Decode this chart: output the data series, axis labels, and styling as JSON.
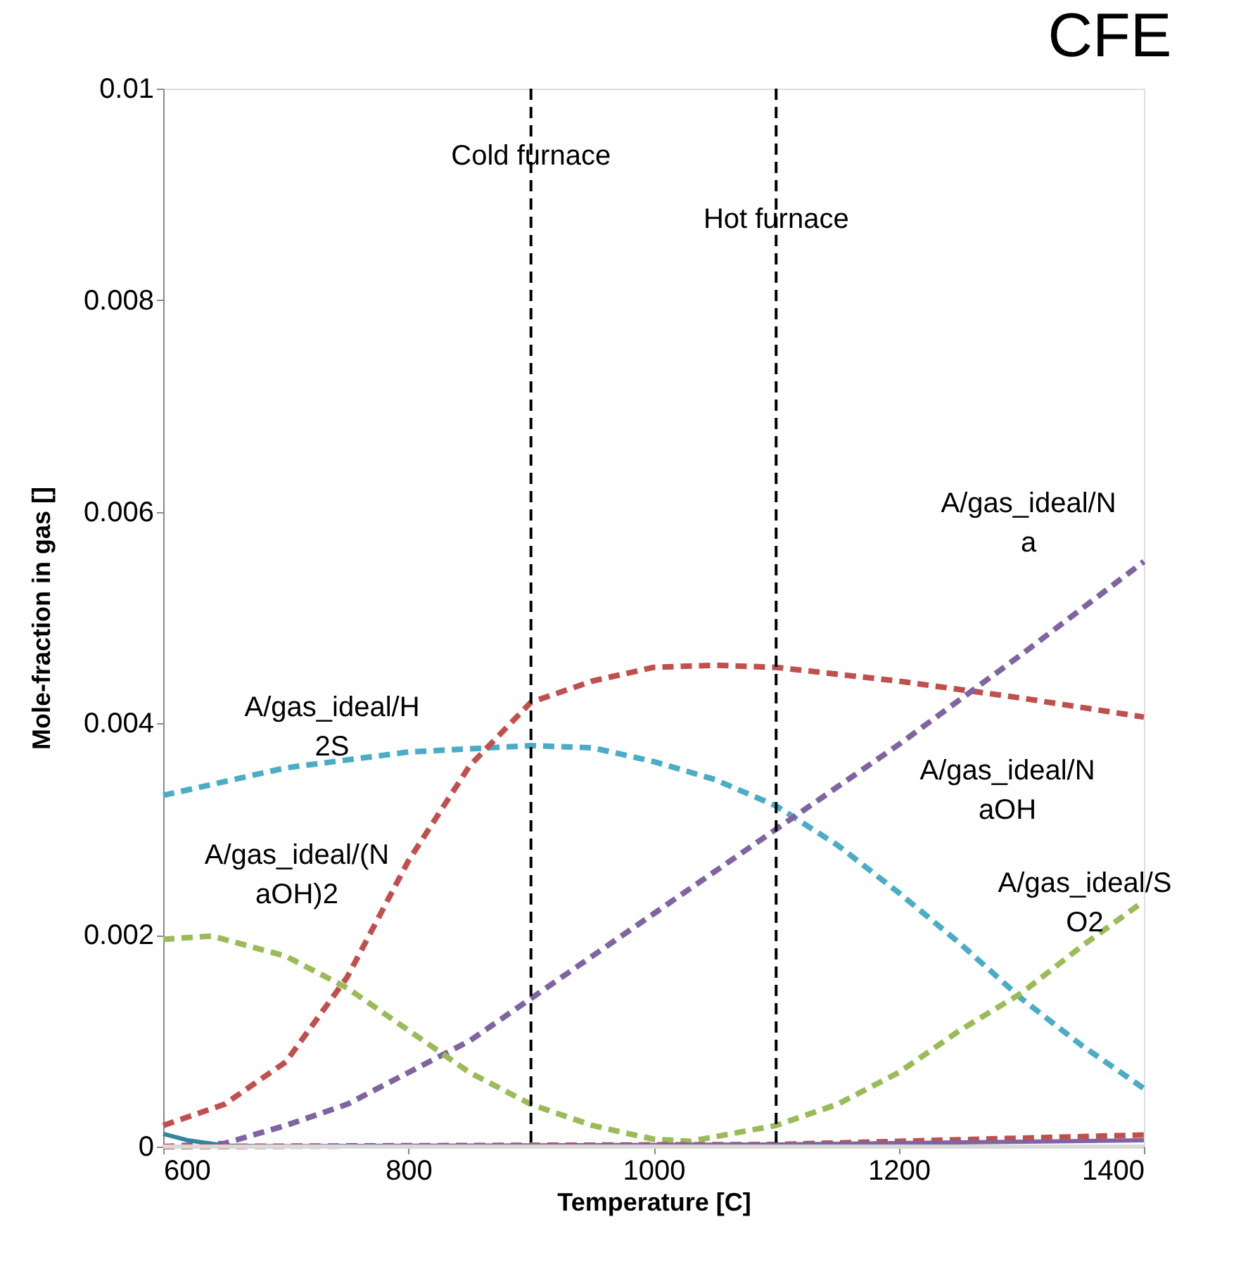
{
  "chart_data": {
    "type": "line",
    "title": "CFE",
    "xlabel": "Temperature [C]",
    "ylabel": "Mole-fraction in gas []",
    "xlim": [
      600,
      1400
    ],
    "xticks": [
      600,
      800,
      1000,
      1200,
      1400
    ],
    "ylim": [
      0,
      0.01
    ],
    "yticks": [
      0,
      0.002,
      0.004,
      0.006,
      0.008,
      0.01
    ],
    "grid": false,
    "marker": "none",
    "series": [
      {
        "color": "#4bacc6",
        "line_style": "dashed",
        "x": [
          600,
          700,
          800,
          900,
          950,
          1000,
          1050,
          1100,
          1150,
          1200,
          1250,
          1300,
          1350,
          1400
        ],
        "values": [
          0.00332,
          0.00358,
          0.00373,
          0.00379,
          0.00377,
          0.00364,
          0.00347,
          0.00322,
          0.00285,
          0.0024,
          0.00192,
          0.0014,
          0.00095,
          0.00055
        ]
      },
      {
        "color": "#c0504d",
        "line_style": "dashed",
        "x": [
          600,
          650,
          700,
          750,
          800,
          850,
          900,
          950,
          1000,
          1050,
          1100,
          1200,
          1300,
          1400
        ],
        "values": [
          0.0002,
          0.0004,
          0.0008,
          0.0016,
          0.0027,
          0.0036,
          0.0042,
          0.0044,
          0.00453,
          0.00455,
          0.00453,
          0.0044,
          0.00424,
          0.00406
        ]
      },
      {
        "color": "#8064a2",
        "line_style": "dashed",
        "x": [
          600,
          650,
          700,
          750,
          800,
          850,
          900,
          1000,
          1100,
          1200,
          1300,
          1400
        ],
        "values": [
          0,
          3e-05,
          0.0002,
          0.0004,
          0.0007,
          0.001,
          0.0014,
          0.0022,
          0.003,
          0.0038,
          0.00465,
          0.00553
        ]
      },
      {
        "color": "#9bbb59",
        "line_style": "dashed",
        "x": [
          600,
          640,
          700,
          750,
          800,
          850,
          900,
          950,
          1000,
          1030,
          1100,
          1150,
          1200,
          1250,
          1300,
          1350,
          1400
        ],
        "values": [
          0.00196,
          0.00199,
          0.0018,
          0.0015,
          0.0011,
          0.0007,
          0.0004,
          0.0002,
          7e-05,
          5e-05,
          0.0002,
          0.0004,
          0.0007,
          0.0011,
          0.00145,
          0.0019,
          0.00232
        ]
      },
      {
        "color": "#31859c",
        "line_style": "solid",
        "x": [
          600,
          620,
          650,
          700
        ],
        "values": [
          0.00012,
          6e-05,
          1e-05,
          0
        ]
      },
      {
        "color": "#c0504d",
        "line_style": "dashed",
        "x": [
          600,
          1100,
          1200,
          1300,
          1400
        ],
        "values": [
          0,
          2e-05,
          5e-05,
          8e-05,
          0.00011
        ]
      },
      {
        "color": "#8064a2",
        "line_style": "solid",
        "x": [
          600,
          1100,
          1400
        ],
        "values": [
          0,
          2e-05,
          6e-05
        ]
      },
      {
        "color": "#d9d9d9",
        "line_style": "solid",
        "x": [
          600,
          1400
        ],
        "values": [
          0,
          0
        ]
      }
    ],
    "ref_lines": [
      {
        "axis": "x",
        "value": 900,
        "label": "Cold furnace",
        "color": "#000000",
        "line_style": "dashed"
      },
      {
        "axis": "x",
        "value": 1100,
        "label": "Hot furnace",
        "color": "#000000",
        "line_style": "dashed"
      }
    ],
    "annotations": [
      "A/gas_ideal/H\n2S",
      "A/gas_ideal/(N\naOH)2",
      "A/gas_ideal/N\na",
      "A/gas_ideal/N\naOH",
      "A/gas_ideal/S\nO2"
    ]
  }
}
